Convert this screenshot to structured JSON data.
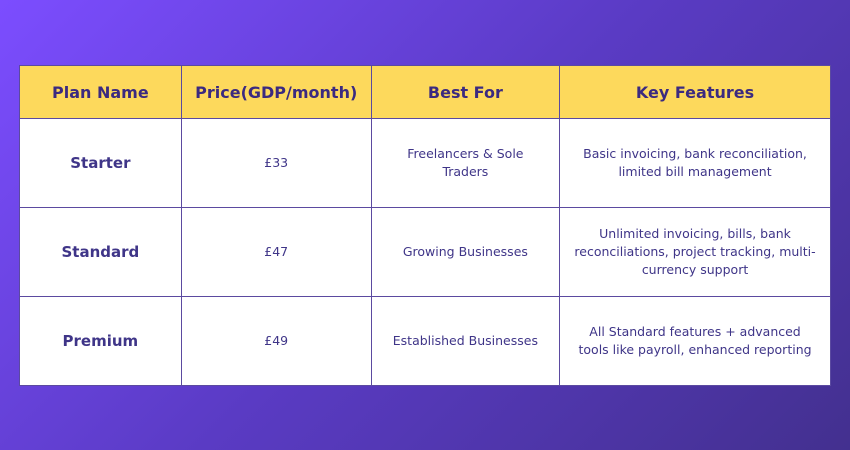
{
  "table": {
    "headers": [
      "Plan Name",
      "Price(GDP/month)",
      "Best For",
      "Key Features"
    ],
    "rows": [
      [
        "Starter",
        "£33",
        "Freelancers & Sole Traders",
        "Basic invoicing, bank reconciliation, limited bill management"
      ],
      [
        "Standard",
        "£47",
        "Growing Businesses",
        "Unlimited invoicing, bills, bank reconciliations, project tracking, multi-currency support"
      ],
      [
        "Premium",
        "£49",
        "Established Businesses",
        "All Standard features + advanced tools like payroll, enhanced reporting"
      ]
    ]
  }
}
